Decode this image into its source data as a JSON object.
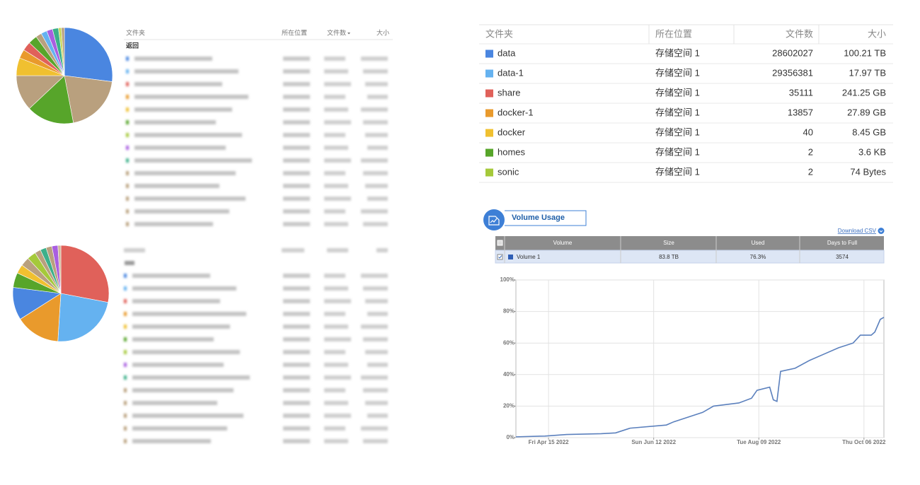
{
  "chart_data": [
    {
      "type": "pie",
      "values": [
        27,
        20,
        16,
        12,
        6,
        3,
        3,
        3,
        2,
        2,
        2,
        2,
        1,
        1
      ],
      "colors": [
        "#4a86e0",
        "#b9a07e",
        "#57a52a",
        "#b9a07e",
        "#f0c030",
        "#e99a2c",
        "#e0615a",
        "#57a52a",
        "#b9a07e",
        "#65b2f0",
        "#a95ee0",
        "#3cb08a",
        "#c8d85a",
        "#b9a07e"
      ]
    },
    {
      "type": "pie",
      "values": [
        28,
        23,
        15,
        11,
        5,
        3,
        3,
        3,
        2,
        2,
        2,
        2,
        1
      ],
      "colors": [
        "#e0615a",
        "#65b2f0",
        "#e99a2c",
        "#4a86e0",
        "#57a52a",
        "#f0c030",
        "#b9a07e",
        "#a5c93a",
        "#b9a07e",
        "#3cb08a",
        "#b9a07e",
        "#a95ee0",
        "#d0b89a"
      ]
    },
    {
      "type": "line",
      "x": [
        "2022-03-28",
        "2022-04-13",
        "2022-04-25",
        "2022-05-14",
        "2022-05-22",
        "2022-05-30",
        "2022-06-19",
        "2022-06-23",
        "2022-07-01",
        "2022-07-09",
        "2022-07-15",
        "2022-07-29",
        "2022-08-05",
        "2022-08-08",
        "2022-08-15",
        "2022-08-17",
        "2022-08-19",
        "2022-08-21",
        "2022-08-29",
        "2022-09-06",
        "2022-09-14",
        "2022-09-22",
        "2022-09-30",
        "2022-10-04",
        "2022-10-10",
        "2022-10-12",
        "2022-10-15",
        "2022-10-17"
      ],
      "series": [
        {
          "color": "#5b80bd",
          "values": [
            0.5,
            1,
            2,
            2.5,
            3,
            6,
            8,
            10,
            13,
            16,
            20,
            22,
            25,
            30,
            32,
            24,
            23,
            42,
            44,
            49,
            53,
            57,
            60,
            65,
            65,
            67,
            75,
            76.3
          ]
        }
      ],
      "xlim": [
        "2022-03-28",
        "2022-10-17"
      ],
      "xticks": [
        {
          "value": "2022-04-15",
          "label": "Fri Apr 15 2022"
        },
        {
          "value": "2022-06-12",
          "label": "Sun Jun 12 2022"
        },
        {
          "value": "2022-08-09",
          "label": "Tue Aug 09 2022"
        },
        {
          "value": "2022-10-06",
          "label": "Thu Oct 06 2022"
        }
      ],
      "ylim": [
        0,
        100
      ],
      "yticks": [
        {
          "value": 0,
          "label": "0%"
        },
        {
          "value": 20,
          "label": "20%"
        },
        {
          "value": 40,
          "label": "40%"
        },
        {
          "value": 60,
          "label": "60%"
        },
        {
          "value": 80,
          "label": "80%"
        },
        {
          "value": 100,
          "label": "100%"
        }
      ],
      "grid": true
    }
  ],
  "left_table": {
    "headers": [
      "文件夹",
      "所在位置",
      "文件数",
      "大小"
    ],
    "back": "返回"
  },
  "folder_table": {
    "headers": [
      "文件夹",
      "所在位置",
      "文件数",
      "大小"
    ],
    "rows": [
      {
        "color": "#4a86e0",
        "name": "data",
        "location": "存储空间 1",
        "count": 28602027,
        "size": "100.21 TB"
      },
      {
        "color": "#65b2f0",
        "name": "data-1",
        "location": "存储空间 1",
        "count": 29356381,
        "size": "17.97 TB"
      },
      {
        "color": "#e0615a",
        "name": "share",
        "location": "存储空间 1",
        "count": 35111,
        "size": "241.25 GB"
      },
      {
        "color": "#e99a2c",
        "name": "docker-1",
        "location": "存储空间 1",
        "count": 13857,
        "size": "27.89 GB"
      },
      {
        "color": "#f0c030",
        "name": "docker",
        "location": "存储空间 1",
        "count": 40,
        "size": "8.45 GB"
      },
      {
        "color": "#57a52a",
        "name": "homes",
        "location": "存储空间 1",
        "count": 2,
        "size": "3.6 KB"
      },
      {
        "color": "#a5c93a",
        "name": "sonic",
        "location": "存储空间 1",
        "count": 2,
        "size": "74 Bytes"
      }
    ]
  },
  "volume_panel": {
    "title": "Volume Usage",
    "download": "Download CSV",
    "headers": [
      "Volume",
      "Size",
      "Used",
      "Days to Full"
    ],
    "row": [
      "Volume 1",
      "83.8 TB",
      "76.3%",
      "3574"
    ]
  }
}
